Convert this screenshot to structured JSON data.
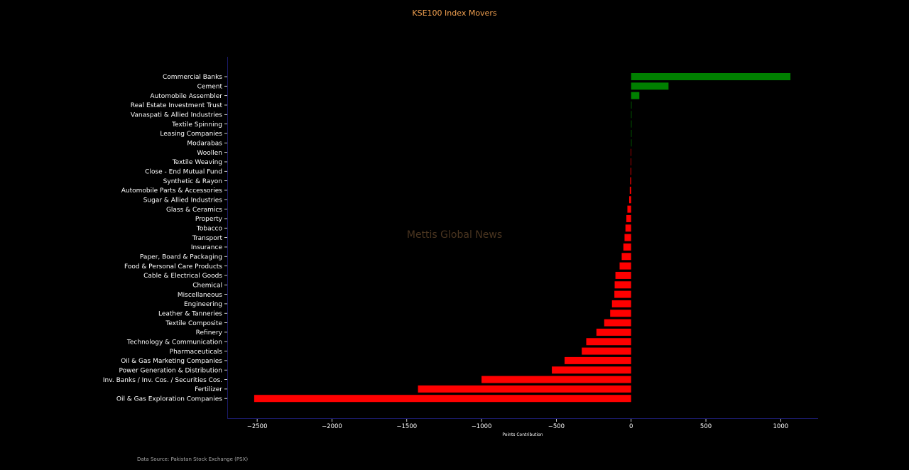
{
  "chart_data": {
    "type": "bar",
    "orientation": "horizontal",
    "title": "KSE100 Index Movers",
    "xlabel": "Points Contribution",
    "ylabel": "",
    "xlim": [
      -2700,
      1250
    ],
    "xticks": [
      -2500,
      -2000,
      -1500,
      -1000,
      -500,
      0,
      500,
      1000
    ],
    "xtick_labels": [
      "−2500",
      "−2000",
      "−1500",
      "−1000",
      "−500",
      "0",
      "500",
      "1000"
    ],
    "grid": false,
    "positive_color": "#008000",
    "negative_color": "#ff0000",
    "categories": [
      "Commercial Banks",
      "Cement",
      "Automobile Assembler",
      "Real Estate Investment Trust",
      "Vanaspati & Allied Industries",
      "Textile Spinning",
      "Leasing Companies",
      "Modarabas",
      "Woollen",
      "Textile Weaving",
      "Close - End Mutual Fund",
      "Synthetic & Rayon",
      "Automobile Parts & Accessories",
      "Sugar & Allied Industries",
      "Glass & Ceramics",
      "Property",
      "Tobacco",
      "Transport",
      "Insurance",
      "Paper, Board & Packaging",
      "Food & Personal Care Products",
      "Cable & Electrical Goods",
      "Chemical",
      "Miscellaneous",
      "Engineering",
      "Leather & Tanneries",
      "Textile Composite",
      "Refinery",
      "Technology & Communication",
      "Pharmaceuticals",
      "Oil & Gas Marketing Companies",
      "Power Generation & Distribution",
      "Inv. Banks / Inv. Cos. / Securities Cos.",
      "Fertilizer",
      "Oil & Gas Exploration Companies"
    ],
    "values": [
      1065,
      250,
      55,
      3,
      2,
      1,
      0,
      0,
      -2,
      -3,
      -4,
      -6,
      -9,
      -13,
      -25,
      -32,
      -38,
      -44,
      -52,
      -63,
      -77,
      -105,
      -110,
      -112,
      -128,
      -140,
      -180,
      -232,
      -300,
      -330,
      -445,
      -530,
      -1000,
      -1425,
      -2520
    ]
  },
  "watermark": "Mettis Global News",
  "source_note": "Data Source: Pakistan Stock Exchange (PSX)"
}
